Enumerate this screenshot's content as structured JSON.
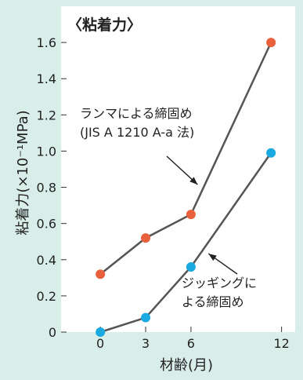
{
  "chart_data": {
    "type": "line",
    "title": "〈粘着力〉",
    "xlabel": "材齢(月)",
    "ylabel": "粘着力(×10⁻¹MPa)",
    "xlim": [
      -2.6,
      12.9
    ],
    "ylim": [
      0,
      1.8
    ],
    "x_ticks": [
      0,
      3,
      6,
      12
    ],
    "y_ticks": [
      0,
      0.2,
      0.4,
      0.6,
      0.8,
      1.0,
      1.2,
      1.4,
      1.6
    ],
    "y_tick_labels": [
      "0",
      "0.2",
      "0.4",
      "0.6",
      "0.8",
      "1.0",
      "1.2",
      "1.4",
      "1.6"
    ],
    "grid": false,
    "series": [
      {
        "name": "ランマによる締固め (JIS A 1210 A-a 法)",
        "color": "#e8603c",
        "x": [
          0,
          3,
          6,
          11.3
        ],
        "y": [
          0.32,
          0.52,
          0.65,
          1.6
        ]
      },
      {
        "name": "ジッギングによる締固め",
        "color": "#1aa9e0",
        "x": [
          0,
          3,
          6,
          11.3
        ],
        "y": [
          0.0,
          0.08,
          0.36,
          0.99
        ]
      }
    ],
    "annotations": [
      {
        "lines": [
          "ランマによる締固め",
          "(JIS A 1210 A-a 法)"
        ],
        "series": 0,
        "at_x": 6.8
      },
      {
        "lines": [
          "ジッギングに",
          "よる締固め"
        ],
        "series": 1,
        "at_x": 6.8
      }
    ]
  }
}
